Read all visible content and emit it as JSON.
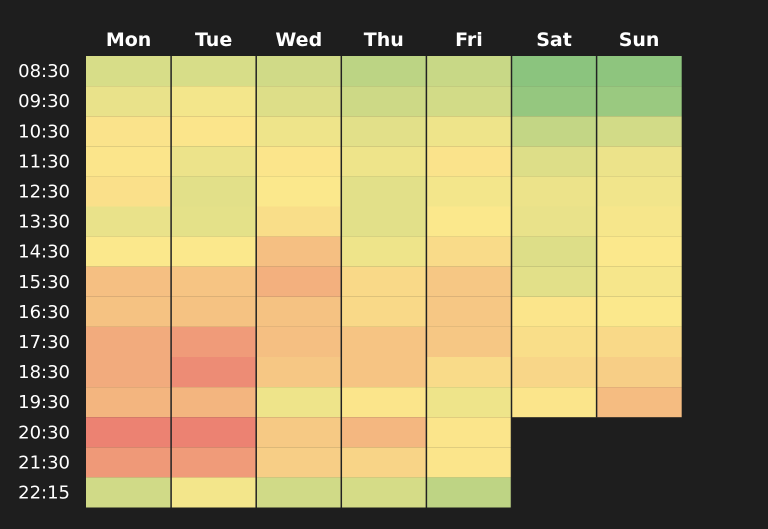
{
  "chart_data": {
    "type": "heatmap",
    "title": "",
    "xlabel": "",
    "ylabel": "",
    "x": [
      "Mon",
      "Tue",
      "Wed",
      "Thu",
      "Fri",
      "Sat",
      "Sun"
    ],
    "y": [
      "08:30",
      "09:30",
      "10:30",
      "11:30",
      "12:30",
      "13:30",
      "14:30",
      "15:30",
      "16:30",
      "17:30",
      "18:30",
      "19:30",
      "20:30",
      "21:30",
      "22:15"
    ],
    "colors": {
      "background": "#1e1e1e",
      "low": "#7cbf7c",
      "mid": "#fbe88c",
      "high": "#e8686c"
    },
    "values": [
      [
        0.36,
        0.36,
        0.33,
        0.25,
        0.3,
        0.06,
        0.07
      ],
      [
        0.43,
        0.47,
        0.38,
        0.32,
        0.34,
        0.1,
        0.12
      ],
      [
        0.52,
        0.51,
        0.45,
        0.4,
        0.45,
        0.28,
        0.34
      ],
      [
        0.51,
        0.44,
        0.51,
        0.45,
        0.52,
        0.38,
        0.44
      ],
      [
        0.53,
        0.4,
        0.5,
        0.4,
        0.47,
        0.44,
        0.46
      ],
      [
        0.43,
        0.41,
        0.54,
        0.4,
        0.5,
        0.43,
        0.48
      ],
      [
        0.5,
        0.5,
        0.66,
        0.45,
        0.55,
        0.38,
        0.5
      ],
      [
        0.66,
        0.64,
        0.72,
        0.56,
        0.63,
        0.4,
        0.48
      ],
      [
        0.65,
        0.65,
        0.65,
        0.56,
        0.63,
        0.51,
        0.5
      ],
      [
        0.74,
        0.8,
        0.66,
        0.64,
        0.63,
        0.54,
        0.56
      ],
      [
        0.74,
        0.86,
        0.63,
        0.64,
        0.55,
        0.57,
        0.6
      ],
      [
        0.7,
        0.7,
        0.45,
        0.51,
        0.45,
        0.51,
        0.67
      ],
      [
        0.9,
        0.9,
        0.62,
        0.69,
        0.51,
        null,
        null
      ],
      [
        0.81,
        0.8,
        0.6,
        0.58,
        0.51,
        null,
        null
      ],
      [
        0.33,
        0.47,
        0.33,
        0.35,
        0.26,
        null,
        null
      ]
    ]
  }
}
